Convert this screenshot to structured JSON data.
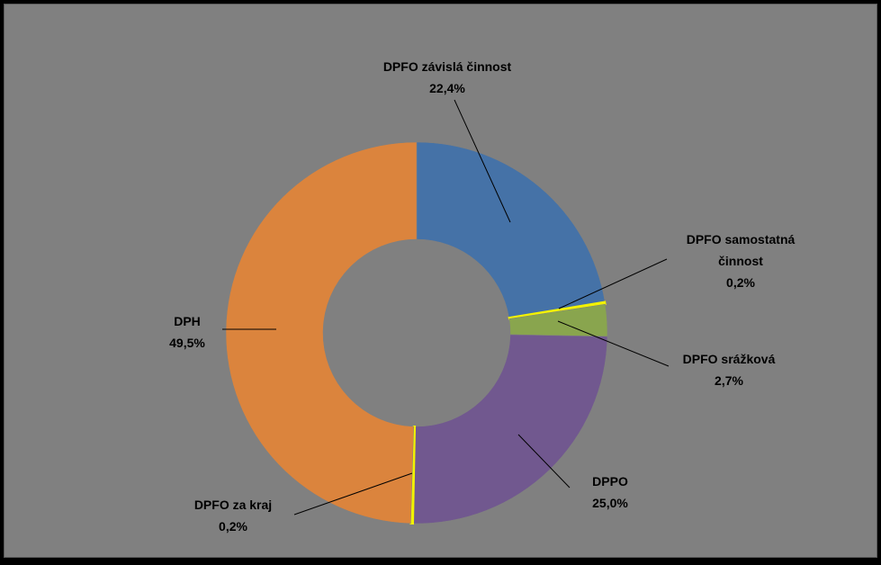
{
  "chart_data": {
    "type": "pie",
    "variant": "donut",
    "title": "",
    "slices": [
      {
        "label": "DPFO závislá činnost",
        "value_label": "22,4%",
        "value": 22.4,
        "color": "#4572A7"
      },
      {
        "label": "DPFO samostatná činnost",
        "label_lines": [
          "DPFO samostatná",
          "činnost"
        ],
        "value_label": "0,2%",
        "value": 0.2,
        "color": "#F2F200"
      },
      {
        "label": "DPFO srážková",
        "value_label": "2,7%",
        "value": 2.7,
        "color": "#89A54E"
      },
      {
        "label": "DPPO",
        "value_label": "25,0%",
        "value": 25.0,
        "color": "#71588F"
      },
      {
        "label": "DPFO za kraj",
        "value_label": "0,2%",
        "value": 0.2,
        "color": "#F2F200"
      },
      {
        "label": "DPH",
        "value_label": "49,5%",
        "value": 49.5,
        "color": "#DB843D"
      }
    ],
    "background": "#808080",
    "legend": "none",
    "grid": false
  }
}
